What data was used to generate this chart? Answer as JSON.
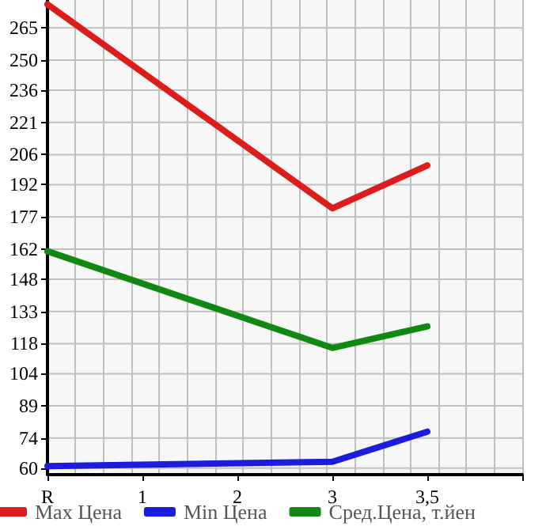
{
  "chart_data": {
    "type": "line",
    "categories": [
      "R",
      "1",
      "2",
      "3",
      "3,5",
      null
    ],
    "series": [
      {
        "name": "Max Цена",
        "color": "#dd1c1c",
        "values": [
          276,
          null,
          null,
          181,
          201,
          null
        ]
      },
      {
        "name": "Min Цена",
        "color": "#1c1cdd",
        "values": [
          61,
          null,
          null,
          63,
          77,
          null
        ]
      },
      {
        "name": "Сред.Цена, т.йен",
        "color": "#118811",
        "values": [
          161,
          null,
          null,
          116,
          126,
          null
        ]
      }
    ],
    "ylim": [
      57,
      278
    ],
    "yticks": [
      60,
      74,
      89,
      104,
      118,
      133,
      148,
      162,
      177,
      192,
      206,
      221,
      236,
      250,
      265
    ],
    "grid": true,
    "legend": "bottom",
    "marker": "none",
    "line_style": "solid"
  }
}
